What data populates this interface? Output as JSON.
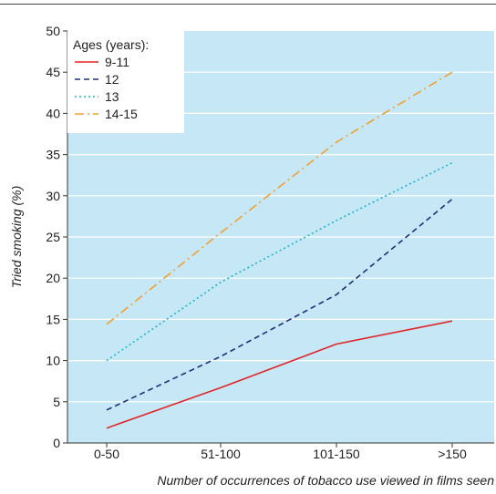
{
  "chart_data": {
    "type": "line",
    "title": "",
    "xlabel": "Number of occurrences of tobacco use viewed in films seen",
    "ylabel": "Tried smoking (%)",
    "categories": [
      "0-50",
      "51-100",
      "101-150",
      ">150"
    ],
    "ylim": [
      0,
      50
    ],
    "yticks": [
      0,
      5,
      10,
      15,
      20,
      25,
      30,
      35,
      40,
      45,
      50
    ],
    "grid": "horizontal",
    "legend_title": "Ages (years):",
    "legend_position": "top-left",
    "background_color": "#c6e8f6",
    "series": [
      {
        "name": "9-11",
        "values": [
          1.8,
          6.7,
          12.0,
          14.8
        ],
        "color": "#e0262a",
        "dash": "solid"
      },
      {
        "name": "12",
        "values": [
          4.0,
          10.5,
          18.0,
          29.6
        ],
        "color": "#1f2e7a",
        "dash": "dashed"
      },
      {
        "name": "13",
        "values": [
          10.0,
          19.5,
          27.0,
          34.0
        ],
        "color": "#1fb3c1",
        "dash": "dotted"
      },
      {
        "name": "14-15",
        "values": [
          14.4,
          25.5,
          36.5,
          45.0
        ],
        "color": "#f0a033",
        "dash": "dashdot"
      }
    ]
  }
}
